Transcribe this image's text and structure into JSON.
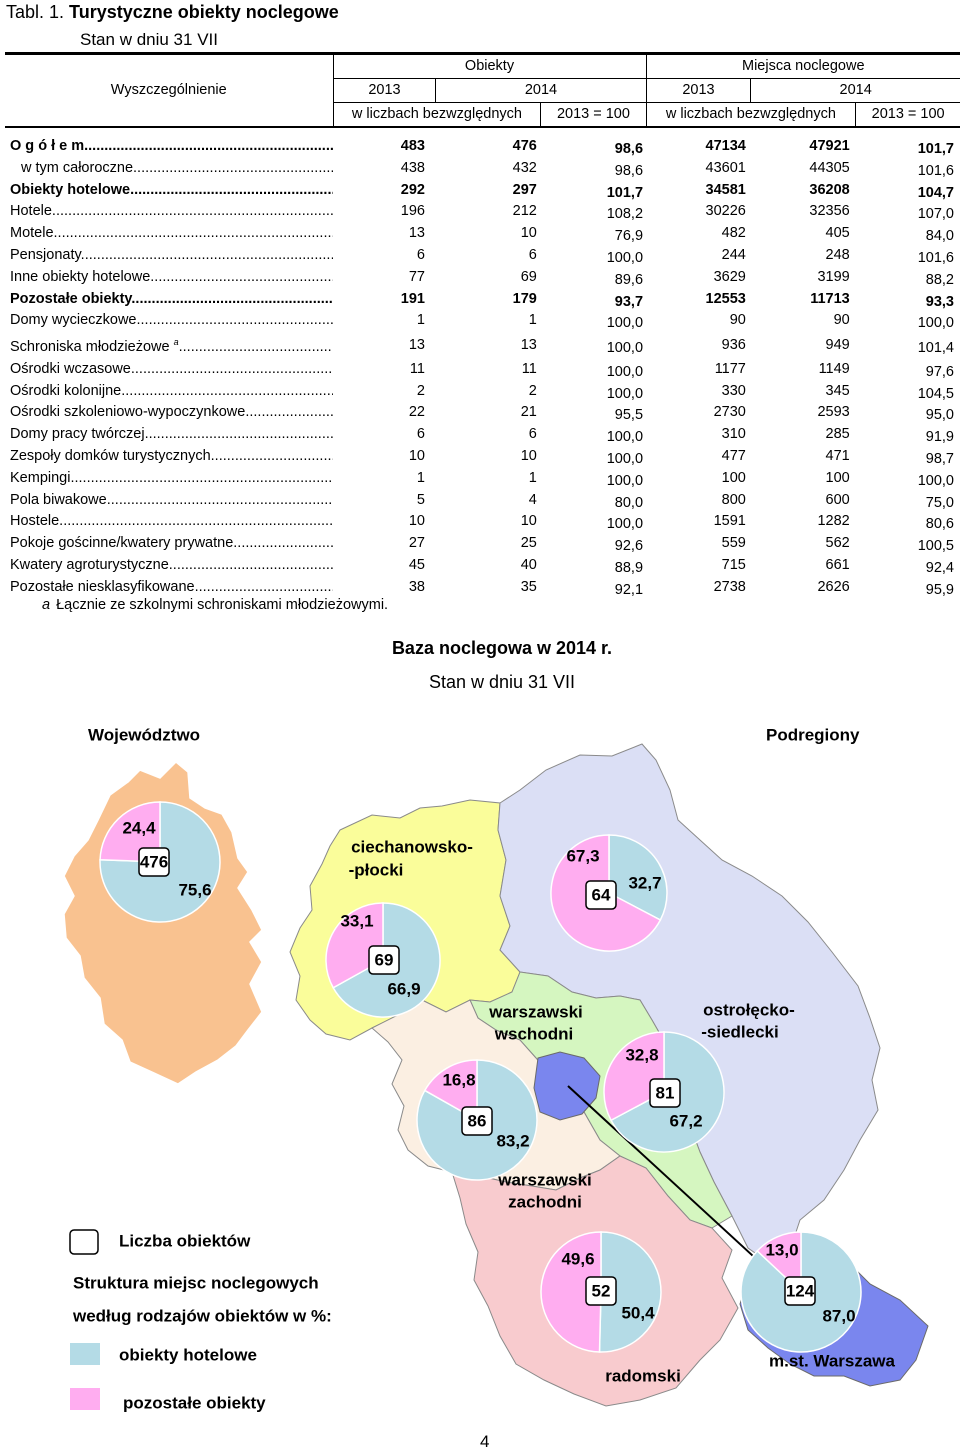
{
  "title": {
    "prefix": "Tabl. 1. ",
    "text": "Turystyczne obiekty noclegowe"
  },
  "subtitle": "Stan w dniu 31 VII",
  "table": {
    "col_spec": "Wyszczególnienie",
    "group1": "Obiekty",
    "group2": "Miejsca noclegowe",
    "years": [
      "2013",
      "2014",
      "2013",
      "2014"
    ],
    "abs": "w liczbach bezwzględnych",
    "idx": "2013 = 100",
    "rows": [
      {
        "label": "O g ó ł e m",
        "bold": true,
        "indent": false,
        "v": [
          "483",
          "476",
          "98,6",
          "47134",
          "47921",
          "101,7"
        ]
      },
      {
        "label": "w tym całoroczne",
        "bold": false,
        "indent": true,
        "v": [
          "438",
          "432",
          "98,6",
          "43601",
          "44305",
          "101,6"
        ]
      },
      {
        "label": "Obiekty hotelowe",
        "bold": true,
        "indent": false,
        "v": [
          "292",
          "297",
          "101,7",
          "34581",
          "36208",
          "104,7"
        ]
      },
      {
        "label": "Hotele",
        "bold": false,
        "indent": false,
        "v": [
          "196",
          "212",
          "108,2",
          "30226",
          "32356",
          "107,0"
        ]
      },
      {
        "label": "Motele",
        "bold": false,
        "indent": false,
        "v": [
          "13",
          "10",
          "76,9",
          "482",
          "405",
          "84,0"
        ]
      },
      {
        "label": "Pensjonaty",
        "bold": false,
        "indent": false,
        "v": [
          "6",
          "6",
          "100,0",
          "244",
          "248",
          "101,6"
        ]
      },
      {
        "label": "Inne obiekty hotelowe",
        "bold": false,
        "indent": false,
        "v": [
          "77",
          "69",
          "89,6",
          "3629",
          "3199",
          "88,2"
        ]
      },
      {
        "label": "Pozostałe obiekty",
        "bold": true,
        "indent": false,
        "v": [
          "191",
          "179",
          "93,7",
          "12553",
          "11713",
          "93,3"
        ]
      },
      {
        "label": "Domy wycieczkowe",
        "bold": false,
        "indent": false,
        "v": [
          "1",
          "1",
          "100,0",
          "90",
          "90",
          "100,0"
        ]
      },
      {
        "label": "Schroniska młodzieżowe",
        "sup": "a",
        "bold": false,
        "indent": false,
        "v": [
          "13",
          "13",
          "100,0",
          "936",
          "949",
          "101,4"
        ]
      },
      {
        "label": "Ośrodki wczasowe",
        "bold": false,
        "indent": false,
        "v": [
          "11",
          "11",
          "100,0",
          "1177",
          "1149",
          "97,6"
        ]
      },
      {
        "label": "Ośrodki kolonijne",
        "bold": false,
        "indent": false,
        "v": [
          "2",
          "2",
          "100,0",
          "330",
          "345",
          "104,5"
        ]
      },
      {
        "label": "Ośrodki szkoleniowo-wypoczynkowe",
        "bold": false,
        "indent": false,
        "v": [
          "22",
          "21",
          "95,5",
          "2730",
          "2593",
          "95,0"
        ]
      },
      {
        "label": "Domy pracy twórczej",
        "bold": false,
        "indent": false,
        "v": [
          "6",
          "6",
          "100,0",
          "310",
          "285",
          "91,9"
        ]
      },
      {
        "label": "Zespoły domków turystycznych",
        "bold": false,
        "indent": false,
        "v": [
          "10",
          "10",
          "100,0",
          "477",
          "471",
          "98,7"
        ]
      },
      {
        "label": "Kempingi",
        "bold": false,
        "indent": false,
        "v": [
          "1",
          "1",
          "100,0",
          "100",
          "100",
          "100,0"
        ]
      },
      {
        "label": "Pola biwakowe",
        "bold": false,
        "indent": false,
        "v": [
          "5",
          "4",
          "80,0",
          "800",
          "600",
          "75,0"
        ]
      },
      {
        "label": "Hostele",
        "bold": false,
        "indent": false,
        "v": [
          "10",
          "10",
          "100,0",
          "1591",
          "1282",
          "80,6"
        ]
      },
      {
        "label": "Pokoje gościnne/kwatery prywatne",
        "bold": false,
        "indent": false,
        "v": [
          "27",
          "25",
          "92,6",
          "559",
          "562",
          "100,5"
        ]
      },
      {
        "label": "Kwatery agroturystyczne",
        "bold": false,
        "indent": false,
        "v": [
          "45",
          "40",
          "88,9",
          "715",
          "661",
          "92,4"
        ]
      },
      {
        "label": "Pozostałe niesklasyfikowane",
        "bold": false,
        "indent": false,
        "v": [
          "38",
          "35",
          "92,1",
          "2738",
          "2626",
          "95,9"
        ]
      }
    ]
  },
  "footnote": {
    "mark": "a",
    "text": "Łącznie ze szkolnymi schroniskami młodzieżowymi."
  },
  "map_title": "Baza noclegowa w 2014 r.",
  "map_subtitle": "Stan w dniu 31 VII",
  "map": {
    "label_voiv": "Województwo",
    "label_sub": "Podregiony",
    "legend_count": "Liczba obiektów",
    "legend_struct_1": "Struktura miejsc noclegowych",
    "legend_struct_2": "według rodzajów obiektów  w %:",
    "legend_hotel": "obiekty hotelowe",
    "legend_other": "pozostałe obiekty",
    "color_hotel": "#b4dbe6",
    "color_other": "#ffadf0",
    "region_colors": {
      "voivodeship": "#f9c290",
      "ciechanowsko_plocki": "#fafd9a",
      "ostrolecko_siedlecki": "#dbdff5",
      "warszawski_wschodni": "#d5f6c0",
      "warszawski_zachodni": "#fbefe2",
      "radomski": "#f8cbce",
      "warszawa": "#7a86ee"
    },
    "pies": [
      {
        "id": "voiv",
        "count": "476",
        "hotel": 75.6,
        "other": 24.4,
        "hotel_label": "75,6",
        "other_label": "24,4"
      },
      {
        "id": "ciech",
        "name_1": "ciechanowsko-",
        "name_2": "-płocki",
        "count": "69",
        "hotel": 66.9,
        "other": 33.1,
        "hotel_label": "66,9",
        "other_label": "33,1"
      },
      {
        "id": "ostr",
        "name_1": "ostrołęcko-",
        "name_2": "-siedlecki",
        "count": "64",
        "hotel": 32.7,
        "other": 67.3,
        "hotel_label": "32,7",
        "other_label": "67,3"
      },
      {
        "id": "wsch",
        "name_1": "warszawski",
        "name_2": "wschodni",
        "count": "81",
        "hotel": 67.2,
        "other": 32.8,
        "hotel_label": "67,2",
        "other_label": "32,8"
      },
      {
        "id": "zach",
        "name_1": "warszawski",
        "name_2": "zachodni",
        "count": "86",
        "hotel": 83.2,
        "other": 16.8,
        "hotel_label": "83,2",
        "other_label": "16,8"
      },
      {
        "id": "rad",
        "name_1": "radomski",
        "count": "52",
        "hotel": 50.4,
        "other": 49.6,
        "hotel_label": "50,4",
        "other_label": "49,6"
      },
      {
        "id": "wwa",
        "name_1": "m.st. Warszawa",
        "count": "124",
        "hotel": 87.0,
        "other": 13.0,
        "hotel_label": "87,0",
        "other_label": "13,0"
      }
    ]
  },
  "page_number": "4"
}
